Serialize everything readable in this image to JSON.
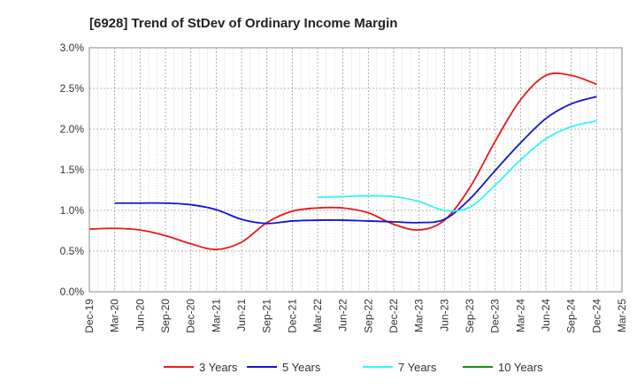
{
  "chart_data": {
    "type": "line",
    "title": "[6928]  Trend of StDev of Ordinary Income Margin",
    "xlabel": "",
    "ylabel": "",
    "categories": [
      "Dec-19",
      "Mar-20",
      "Jun-20",
      "Sep-20",
      "Dec-20",
      "Mar-21",
      "Jun-21",
      "Sep-21",
      "Dec-21",
      "Mar-22",
      "Jun-22",
      "Sep-22",
      "Dec-22",
      "Mar-23",
      "Jun-23",
      "Sep-23",
      "Dec-23",
      "Mar-24",
      "Jun-24",
      "Sep-24",
      "Dec-24",
      "Mar-25"
    ],
    "yticks": [
      "0.0%",
      "0.5%",
      "1.0%",
      "1.5%",
      "2.0%",
      "2.5%",
      "3.0%"
    ],
    "ylim": [
      0,
      3.0
    ],
    "grid": true,
    "legend_position": "bottom",
    "series": [
      {
        "name": "3 Years",
        "color": "#e31a1c",
        "values": [
          0.77,
          0.78,
          0.76,
          0.69,
          0.59,
          0.52,
          0.61,
          0.85,
          0.99,
          1.03,
          1.03,
          0.97,
          0.83,
          0.76,
          0.88,
          1.28,
          1.85,
          2.36,
          2.66,
          2.66,
          2.55,
          null
        ]
      },
      {
        "name": "5 Years",
        "color": "#1414cc",
        "values": [
          null,
          1.09,
          1.09,
          1.09,
          1.07,
          1.01,
          0.89,
          0.84,
          0.87,
          0.88,
          0.88,
          0.87,
          0.86,
          0.85,
          0.89,
          1.14,
          1.49,
          1.83,
          2.13,
          2.31,
          2.4,
          null
        ]
      },
      {
        "name": "7 Years",
        "color": "#33f5f5",
        "values": [
          null,
          null,
          null,
          null,
          null,
          null,
          null,
          null,
          null,
          1.16,
          1.17,
          1.18,
          1.17,
          1.11,
          1.0,
          1.04,
          1.31,
          1.62,
          1.88,
          2.03,
          2.1,
          null
        ]
      },
      {
        "name": "10 Years",
        "color": "#1a8c1a",
        "values": [
          null,
          null,
          null,
          null,
          null,
          null,
          null,
          null,
          null,
          null,
          null,
          null,
          null,
          null,
          null,
          null,
          null,
          null,
          null,
          null,
          null,
          null
        ]
      }
    ]
  }
}
